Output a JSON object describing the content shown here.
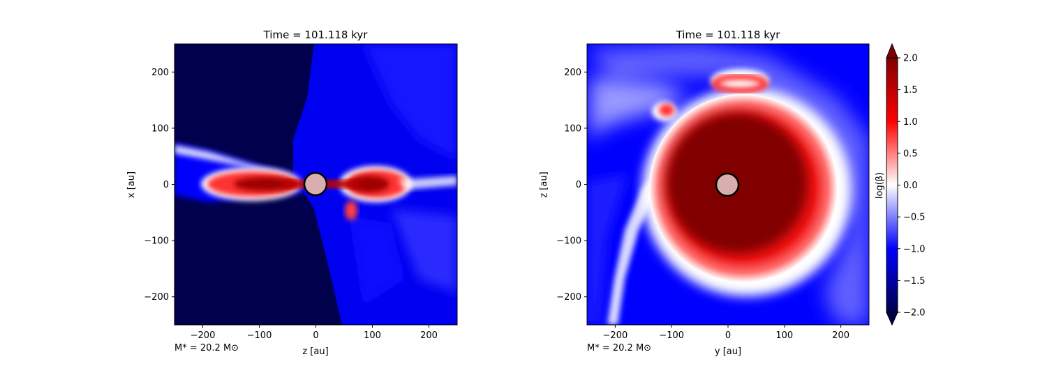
{
  "colors": {
    "deep_blue": "#00004c",
    "blue": "#0000ff",
    "white": "#ffffff",
    "red": "#ff0000",
    "dark_red": "#800000",
    "star_fill": "#d9aeae"
  },
  "colorbar": {
    "label": "log(β)",
    "min": -2.0,
    "max": 2.0,
    "cmap": "seismic",
    "extend": "both",
    "ticks": [
      "2.0",
      "1.5",
      "1.0",
      "0.5",
      "0.0",
      "−0.5",
      "−1.0",
      "−1.5",
      "−2.0"
    ]
  },
  "chart_data": [
    {
      "type": "heatmap",
      "title": "Time = 101.118 kyr",
      "xlabel": "z [au]",
      "ylabel": "x [au]",
      "xlim": [
        -250,
        250
      ],
      "ylim": [
        -250,
        250
      ],
      "xticks": [
        -200,
        -100,
        0,
        100,
        200
      ],
      "yticks": [
        -200,
        -100,
        0,
        100,
        200
      ],
      "xtick_labels": [
        "−200",
        "−100",
        "0",
        "100",
        "200"
      ],
      "ytick_labels": [
        "−200",
        "−100",
        "0",
        "100",
        "200"
      ],
      "annotation": "M* = 20.2 M⊙",
      "star": {
        "x": 0,
        "y": 0,
        "r": 20
      }
    },
    {
      "type": "heatmap",
      "title": "Time = 101.118 kyr",
      "xlabel": "y [au]",
      "ylabel": "z [au]",
      "xlim": [
        -250,
        250
      ],
      "ylim": [
        -250,
        250
      ],
      "xticks": [
        -200,
        -100,
        0,
        100,
        200
      ],
      "yticks": [
        -200,
        -100,
        0,
        100,
        200
      ],
      "xtick_labels": [
        "−200",
        "−100",
        "0",
        "100",
        "200"
      ],
      "ytick_labels": [
        "−200",
        "−100",
        "0",
        "100",
        "200"
      ],
      "annotation": "M* = 20.2 M⊙",
      "star": {
        "x": 0,
        "y": 0,
        "r": 20
      }
    }
  ]
}
